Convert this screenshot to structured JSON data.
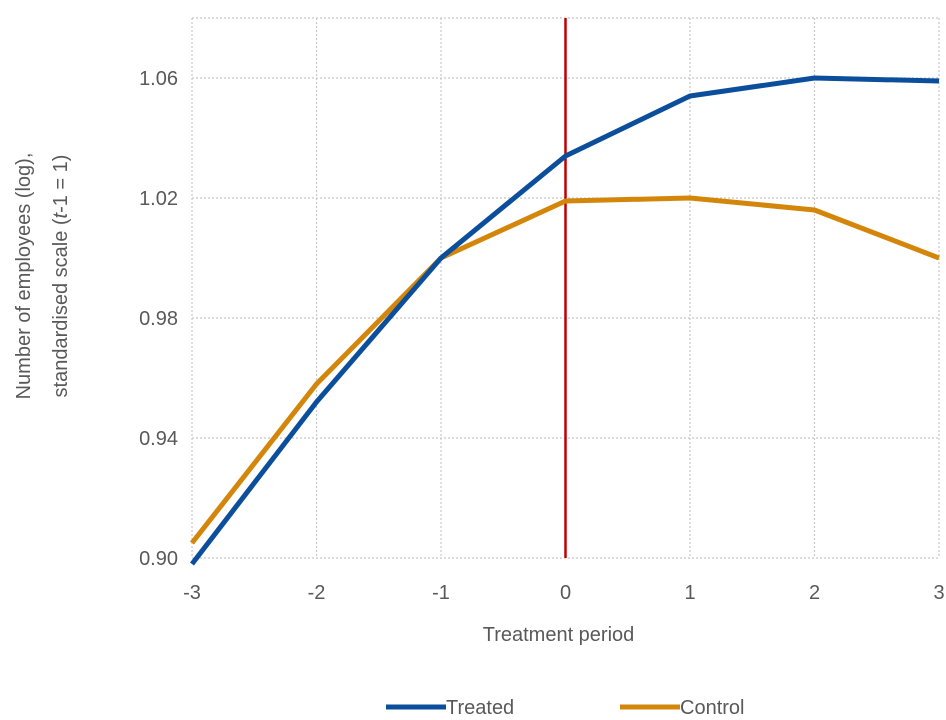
{
  "chart_data": {
    "type": "line",
    "xlabel": "Treatment period",
    "ylabel_line1": "Number of employees (log),",
    "ylabel_line2_pre": "standardised scale (",
    "ylabel_line2_italic": "t",
    "ylabel_line2_post": "-1 = 1)",
    "x": [
      -3,
      -2,
      -1,
      0,
      1,
      2,
      3
    ],
    "x_tick_labels": [
      "-3",
      "-2",
      "-1",
      "0",
      "1",
      "2",
      "3"
    ],
    "y_ticks": [
      0.9,
      0.94,
      0.98,
      1.02,
      1.06
    ],
    "y_tick_labels": [
      "0.90",
      "0.94",
      "0.98",
      "1.02",
      "1.06"
    ],
    "xlim": [
      -3,
      3
    ],
    "ylim": [
      0.9,
      1.08
    ],
    "grid": true,
    "grid_style": "dotted",
    "vertical_marker": {
      "x": 0,
      "color": "#C00000"
    },
    "legend_position": "bottom-center",
    "series": [
      {
        "name": "Treated",
        "color": "#0B4F9C",
        "values": [
          0.898,
          0.952,
          1.0,
          1.034,
          1.054,
          1.06,
          1.059
        ]
      },
      {
        "name": "Control",
        "color": "#D4860B",
        "values": [
          0.905,
          0.958,
          1.0,
          1.019,
          1.02,
          1.016,
          1.0
        ]
      }
    ]
  }
}
